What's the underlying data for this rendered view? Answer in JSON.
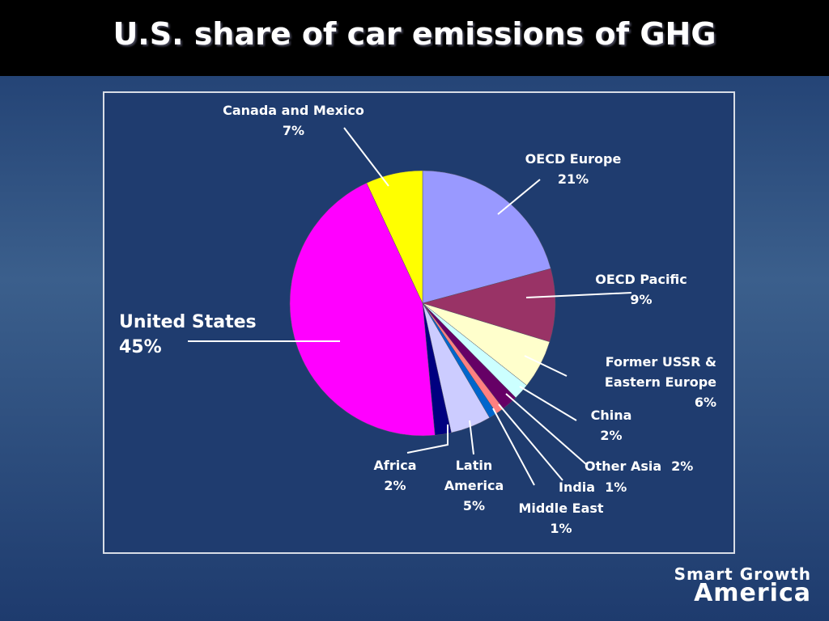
{
  "chart_data": {
    "type": "pie",
    "title": "U.S. share of car emissions of GHG",
    "categories": [
      "OECD Europe",
      "OECD Pacific",
      "Former USSR & Eastern Europe",
      "China",
      "Other Asia",
      "India",
      "Middle East",
      "Latin America",
      "Africa",
      "United States",
      "Canada and Mexico"
    ],
    "values": [
      21,
      9,
      6,
      2,
      2,
      1,
      1,
      5,
      2,
      45,
      7
    ],
    "value_labels": [
      "21%",
      "9%",
      "6%",
      "2%",
      "2%",
      "1%",
      "1%",
      "5%",
      "2%",
      "45%",
      "7%"
    ],
    "colors": [
      "#9999ff",
      "#993366",
      "#ffffcc",
      "#ccffff",
      "#660066",
      "#ff8080",
      "#0066cc",
      "#ccccff",
      "#000080",
      "#ff00ff",
      "#ffff00"
    ]
  },
  "logo": {
    "line1": "Smart Growth",
    "line2": "America"
  }
}
